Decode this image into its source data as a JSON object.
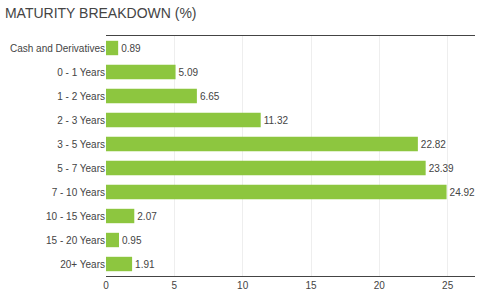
{
  "chart_data": {
    "type": "bar",
    "orientation": "horizontal",
    "title": "MATURITY BREAKDOWN (%)",
    "categories": [
      "Cash and Derivatives",
      "0 - 1 Years",
      "1 - 2 Years",
      "2 - 3 Years",
      "3 - 5 Years",
      "5 - 7 Years",
      "7 - 10 Years",
      "10 - 15 Years",
      "15 - 20 Years",
      "20+ Years"
    ],
    "values": [
      0.89,
      5.09,
      6.65,
      11.32,
      22.82,
      23.39,
      24.92,
      2.07,
      0.95,
      1.91
    ],
    "color": "#8dc63f",
    "xlim": [
      0,
      27
    ],
    "xticks": [
      0,
      5,
      10,
      15,
      20,
      25
    ],
    "grid": true,
    "data_labels": true
  }
}
